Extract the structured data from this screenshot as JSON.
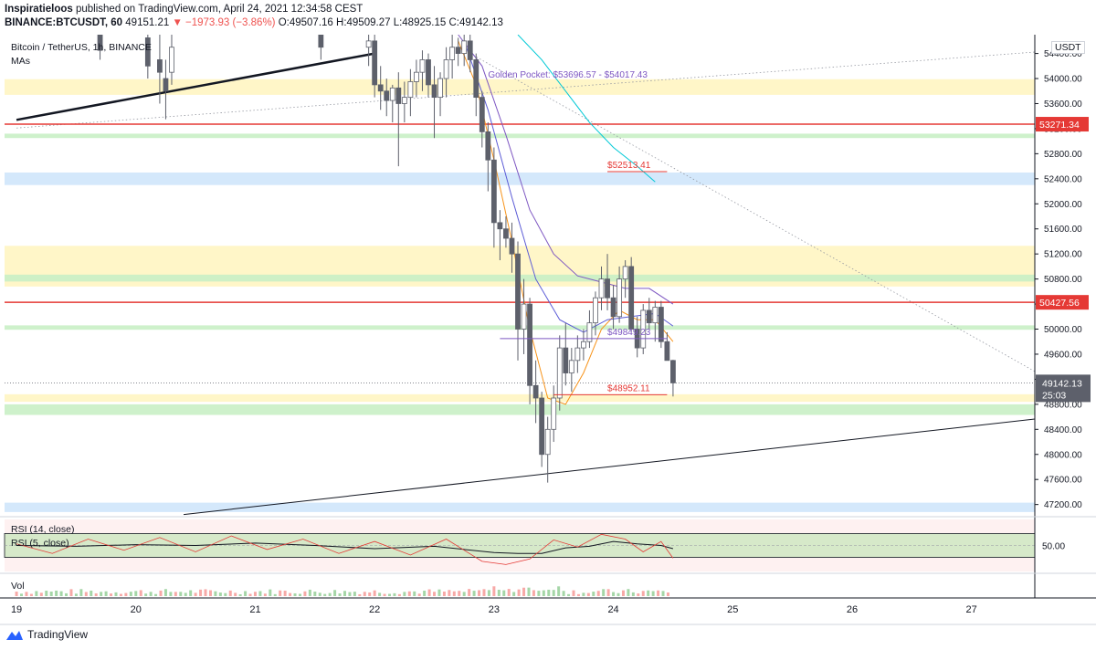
{
  "header": {
    "author": "Inspiratieloos",
    "published": "published on TradingView.com, April 24, 2021 12:34:58 CEST",
    "symbol": "BINANCE:BTCUSDT, 60",
    "last": "49151.21",
    "change": "▼ −1973.93 (−3.86%)",
    "open": "O:49507.16",
    "high": "H:49509.27",
    "low": "L:48925.15",
    "close": "C:49142.13"
  },
  "pane_labels": {
    "title": "Bitcoin / TetherUS, 1h, BINANCE",
    "mas": "MAs",
    "currency": "USDT",
    "rsi14": "RSI (14, close)",
    "rsi5": "RSI (5, close)",
    "vol": "Vol"
  },
  "footer": {
    "brand": "TradingView"
  },
  "colors": {
    "up": "#ffffff",
    "down": "#5d606b",
    "wick": "#5d606b",
    "ma_fast": "#f7931a",
    "ma_mid": "#5b5bd6",
    "ma_slow": "#7e57c2",
    "ma_long": "#00c9d6",
    "support_red": "#e53935",
    "zone_yellow": "#fff5c2",
    "zone_green": "#c9efc5",
    "zone_blue": "#cfe6fb"
  },
  "chart_data": {
    "type": "candlestick",
    "ylim": [
      47020,
      54700
    ],
    "x_ticks": [
      "19",
      "20",
      "21",
      "22",
      "23",
      "24",
      "25",
      "26",
      "27"
    ],
    "y_ticks": [
      "54400.00",
      "54000.00",
      "53600.00",
      "53200.00",
      "52800.00",
      "52400.00",
      "52000.00",
      "51600.00",
      "51200.00",
      "50800.00",
      "50400.00",
      "50000.00",
      "49600.00",
      "49200.00",
      "48800.00",
      "48400.00",
      "48000.00",
      "47600.00",
      "47200.00"
    ],
    "y_tick_values": [
      54400,
      54000,
      53600,
      53200,
      52800,
      52400,
      52000,
      51600,
      51200,
      50800,
      50400,
      50000,
      49600,
      49200,
      48800,
      48400,
      48000,
      47600,
      47200
    ],
    "last_price": {
      "value": 49142.13,
      "label": "49142.13",
      "countdown": "25:03"
    },
    "zones": [
      {
        "type": "yellow",
        "from": 53740,
        "to": 53990
      },
      {
        "type": "green",
        "from": 53050,
        "to": 53120
      },
      {
        "type": "blue",
        "from": 52300,
        "to": 52500
      },
      {
        "type": "yellow",
        "from": 50680,
        "to": 51330
      },
      {
        "type": "green",
        "from": 50760,
        "to": 50870
      },
      {
        "type": "green",
        "from": 49990,
        "to": 50060
      },
      {
        "type": "yellow",
        "from": 48840,
        "to": 48960
      },
      {
        "type": "green",
        "from": 48630,
        "to": 48800
      },
      {
        "type": "blue",
        "from": 47080,
        "to": 47230
      }
    ],
    "levels": [
      {
        "value": 53271.34,
        "label": "53271.34"
      },
      {
        "value": 50427.56,
        "label": "50427.56"
      }
    ],
    "annotations": [
      {
        "text": "Golden Pocket: $53696.57 - $54017.43",
        "price": 53960,
        "day": 22.95
      },
      {
        "text": "$52513.41",
        "price": 52513.41,
        "day": 23.95,
        "from": 23.95,
        "to": 24.45
      },
      {
        "text": "$49849.23",
        "price": 49849.23,
        "day": 23.95,
        "from": 23.05,
        "to": 24.45
      },
      {
        "text": "$48952.11",
        "price": 48952.11,
        "day": 23.95,
        "from": 23.5,
        "to": 24.45
      }
    ],
    "trendlines": [
      {
        "from": [
          19.0,
          53340
        ],
        "to": [
          22.0,
          54400
        ],
        "style": "thick"
      },
      {
        "from": [
          20.4,
          47040
        ],
        "to": [
          27.65,
          48590
        ],
        "style": "solid"
      },
      {
        "from": [
          19.0,
          53210
        ],
        "to": [
          27.65,
          54440
        ],
        "style": "dotted"
      },
      {
        "from": [
          22.8,
          54400
        ],
        "to": [
          27.6,
          49250
        ],
        "style": "dotted"
      }
    ],
    "candles": [
      {
        "d": 19.7,
        "o": 54700,
        "h": 54800,
        "l": 54300,
        "c": 54450
      },
      {
        "d": 20.1,
        "o": 54650,
        "h": 54800,
        "l": 54000,
        "c": 54200
      },
      {
        "d": 20.2,
        "o": 54300,
        "h": 54700,
        "l": 53600,
        "c": 54100
      },
      {
        "d": 20.25,
        "o": 54000,
        "h": 54300,
        "l": 53350,
        "c": 53800
      },
      {
        "d": 20.3,
        "o": 54100,
        "h": 54700,
        "l": 53900,
        "c": 54500
      },
      {
        "d": 21.55,
        "o": 54700,
        "h": 54800,
        "l": 54300,
        "c": 54500
      },
      {
        "d": 21.95,
        "o": 54500,
        "h": 54750,
        "l": 54200,
        "c": 54600
      },
      {
        "d": 22.0,
        "o": 54600,
        "h": 54700,
        "l": 53700,
        "c": 53900
      },
      {
        "d": 22.05,
        "o": 53900,
        "h": 54200,
        "l": 53500,
        "c": 53800
      },
      {
        "d": 22.1,
        "o": 53800,
        "h": 54000,
        "l": 53400,
        "c": 53650
      },
      {
        "d": 22.15,
        "o": 53650,
        "h": 53900,
        "l": 53300,
        "c": 53850
      },
      {
        "d": 22.2,
        "o": 53850,
        "h": 54100,
        "l": 52600,
        "c": 53600
      },
      {
        "d": 22.25,
        "o": 53600,
        "h": 53950,
        "l": 53300,
        "c": 53700
      },
      {
        "d": 22.3,
        "o": 53700,
        "h": 54150,
        "l": 53400,
        "c": 53950
      },
      {
        "d": 22.35,
        "o": 53950,
        "h": 54300,
        "l": 53700,
        "c": 54100
      },
      {
        "d": 22.4,
        "o": 54100,
        "h": 54450,
        "l": 53800,
        "c": 54300
      },
      {
        "d": 22.45,
        "o": 54300,
        "h": 54400,
        "l": 53700,
        "c": 53900
      },
      {
        "d": 22.5,
        "o": 53900,
        "h": 54200,
        "l": 53050,
        "c": 53700
      },
      {
        "d": 22.55,
        "o": 53700,
        "h": 54100,
        "l": 53400,
        "c": 54000
      },
      {
        "d": 22.6,
        "o": 54000,
        "h": 54500,
        "l": 53700,
        "c": 54300
      },
      {
        "d": 22.65,
        "o": 54300,
        "h": 54700,
        "l": 54000,
        "c": 54500
      },
      {
        "d": 22.7,
        "o": 54500,
        "h": 54650,
        "l": 54200,
        "c": 54400
      },
      {
        "d": 22.75,
        "o": 54400,
        "h": 54700,
        "l": 54200,
        "c": 54600
      },
      {
        "d": 22.8,
        "o": 54600,
        "h": 54700,
        "l": 54100,
        "c": 54300
      },
      {
        "d": 22.85,
        "o": 54300,
        "h": 54400,
        "l": 53400,
        "c": 53700
      },
      {
        "d": 22.9,
        "o": 53700,
        "h": 53800,
        "l": 52900,
        "c": 53150
      },
      {
        "d": 22.95,
        "o": 53150,
        "h": 53300,
        "l": 52200,
        "c": 52700
      },
      {
        "d": 23.0,
        "o": 52700,
        "h": 52900,
        "l": 51300,
        "c": 51700
      },
      {
        "d": 23.05,
        "o": 51700,
        "h": 51900,
        "l": 51100,
        "c": 51600
      },
      {
        "d": 23.1,
        "o": 51600,
        "h": 51800,
        "l": 51300,
        "c": 51450
      },
      {
        "d": 23.15,
        "o": 51450,
        "h": 51700,
        "l": 50900,
        "c": 51200
      },
      {
        "d": 23.2,
        "o": 51200,
        "h": 51400,
        "l": 49500,
        "c": 50000
      },
      {
        "d": 23.25,
        "o": 50000,
        "h": 50800,
        "l": 49600,
        "c": 50400
      },
      {
        "d": 23.3,
        "o": 50400,
        "h": 50500,
        "l": 48800,
        "c": 49100
      },
      {
        "d": 23.35,
        "o": 49100,
        "h": 49500,
        "l": 48500,
        "c": 48900
      },
      {
        "d": 23.4,
        "o": 48900,
        "h": 49000,
        "l": 47800,
        "c": 48000
      },
      {
        "d": 23.45,
        "o": 48000,
        "h": 48600,
        "l": 47550,
        "c": 48400
      },
      {
        "d": 23.5,
        "o": 48400,
        "h": 49100,
        "l": 48200,
        "c": 48900
      },
      {
        "d": 23.55,
        "o": 48900,
        "h": 49900,
        "l": 48700,
        "c": 49700
      },
      {
        "d": 23.6,
        "o": 49700,
        "h": 50100,
        "l": 49100,
        "c": 49300
      },
      {
        "d": 23.65,
        "o": 49300,
        "h": 49700,
        "l": 49000,
        "c": 49500
      },
      {
        "d": 23.7,
        "o": 49500,
        "h": 49900,
        "l": 49300,
        "c": 49700
      },
      {
        "d": 23.75,
        "o": 49700,
        "h": 50000,
        "l": 49500,
        "c": 49800
      },
      {
        "d": 23.8,
        "o": 49800,
        "h": 50300,
        "l": 49700,
        "c": 50100
      },
      {
        "d": 23.85,
        "o": 50100,
        "h": 50600,
        "l": 49900,
        "c": 50500
      },
      {
        "d": 23.9,
        "o": 50500,
        "h": 51000,
        "l": 50300,
        "c": 50800
      },
      {
        "d": 23.95,
        "o": 50800,
        "h": 51200,
        "l": 50300,
        "c": 50500
      },
      {
        "d": 24.0,
        "o": 50500,
        "h": 50700,
        "l": 50000,
        "c": 50200
      },
      {
        "d": 24.05,
        "o": 50200,
        "h": 51000,
        "l": 50100,
        "c": 50800
      },
      {
        "d": 24.1,
        "o": 50800,
        "h": 51100,
        "l": 50500,
        "c": 51000
      },
      {
        "d": 24.15,
        "o": 51000,
        "h": 51150,
        "l": 49950,
        "c": 50000
      },
      {
        "d": 24.2,
        "o": 50000,
        "h": 50200,
        "l": 49550,
        "c": 49700
      },
      {
        "d": 24.25,
        "o": 49700,
        "h": 50400,
        "l": 49600,
        "c": 50300
      },
      {
        "d": 24.3,
        "o": 50300,
        "h": 50500,
        "l": 50000,
        "c": 50100
      },
      {
        "d": 24.35,
        "o": 50100,
        "h": 50450,
        "l": 49800,
        "c": 50350
      },
      {
        "d": 24.4,
        "o": 50350,
        "h": 50450,
        "l": 49700,
        "c": 49800
      },
      {
        "d": 24.45,
        "o": 49800,
        "h": 49950,
        "l": 49500,
        "c": 49500
      },
      {
        "d": 24.5,
        "o": 49500,
        "h": 49510,
        "l": 48925,
        "c": 49142
      }
    ],
    "ma_lines": [
      {
        "name": "ma_fast",
        "points": [
          [
            22.7,
            54600
          ],
          [
            22.85,
            53900
          ],
          [
            23.0,
            52700
          ],
          [
            23.15,
            51400
          ],
          [
            23.3,
            50000
          ],
          [
            23.45,
            48900
          ],
          [
            23.6,
            48800
          ],
          [
            23.75,
            49300
          ],
          [
            23.9,
            50000
          ],
          [
            24.05,
            50300
          ],
          [
            24.2,
            50150
          ],
          [
            24.35,
            50150
          ],
          [
            24.5,
            49800
          ]
        ]
      },
      {
        "name": "ma_mid",
        "points": [
          [
            22.75,
            54600
          ],
          [
            22.95,
            53500
          ],
          [
            23.15,
            52100
          ],
          [
            23.35,
            50800
          ],
          [
            23.55,
            50150
          ],
          [
            23.75,
            49950
          ],
          [
            23.95,
            50150
          ],
          [
            24.15,
            50200
          ],
          [
            24.35,
            50250
          ],
          [
            24.5,
            50050
          ]
        ]
      },
      {
        "name": "ma_slow",
        "points": [
          [
            22.7,
            54700
          ],
          [
            22.9,
            54200
          ],
          [
            23.1,
            53100
          ],
          [
            23.3,
            51900
          ],
          [
            23.5,
            51200
          ],
          [
            23.7,
            50850
          ],
          [
            23.9,
            50750
          ],
          [
            24.1,
            50650
          ],
          [
            24.3,
            50650
          ],
          [
            24.5,
            50400
          ]
        ]
      },
      {
        "name": "ma_long",
        "points": [
          [
            23.2,
            54700
          ],
          [
            23.4,
            54300
          ],
          [
            23.6,
            53800
          ],
          [
            23.8,
            53300
          ],
          [
            24.0,
            52900
          ],
          [
            24.2,
            52600
          ],
          [
            24.35,
            52350
          ]
        ]
      }
    ],
    "rsi": {
      "ylim": [
        15,
        85
      ],
      "tick": "50.00",
      "band": [
        35,
        65
      ],
      "rsi14": [
        [
          19.0,
          50
        ],
        [
          19.5,
          49
        ],
        [
          20.0,
          51
        ],
        [
          20.5,
          50
        ],
        [
          21.0,
          53
        ],
        [
          21.5,
          50
        ],
        [
          22.0,
          46
        ],
        [
          22.5,
          49
        ],
        [
          23.0,
          41
        ],
        [
          23.2,
          40
        ],
        [
          23.4,
          40
        ],
        [
          23.6,
          47
        ],
        [
          23.8,
          49
        ],
        [
          24.0,
          55
        ],
        [
          24.2,
          52
        ],
        [
          24.4,
          50
        ],
        [
          24.5,
          46
        ]
      ],
      "rsi5": [
        [
          19.0,
          52
        ],
        [
          19.3,
          40
        ],
        [
          19.6,
          58
        ],
        [
          19.9,
          44
        ],
        [
          20.2,
          60
        ],
        [
          20.5,
          42
        ],
        [
          20.8,
          62
        ],
        [
          21.1,
          45
        ],
        [
          21.4,
          58
        ],
        [
          21.7,
          40
        ],
        [
          22.0,
          55
        ],
        [
          22.3,
          38
        ],
        [
          22.6,
          58
        ],
        [
          22.9,
          30
        ],
        [
          23.1,
          26
        ],
        [
          23.3,
          33
        ],
        [
          23.5,
          57
        ],
        [
          23.7,
          48
        ],
        [
          23.9,
          64
        ],
        [
          24.1,
          58
        ],
        [
          24.25,
          42
        ],
        [
          24.4,
          55
        ],
        [
          24.5,
          34
        ]
      ]
    },
    "volume": {
      "from": 19.0,
      "to": 24.5
    }
  }
}
